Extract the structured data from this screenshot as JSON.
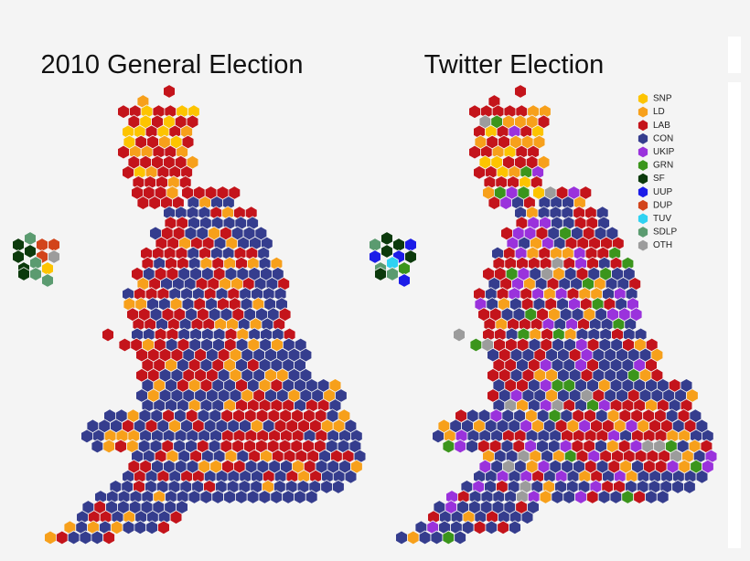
{
  "maps": [
    {
      "title": "2010 General Election"
    },
    {
      "title": "Twitter Election"
    }
  ],
  "legend": [
    {
      "label": "SNP",
      "color": "#fdc400"
    },
    {
      "label": "LD",
      "color": "#f7a01b"
    },
    {
      "label": "LAB",
      "color": "#c4141b"
    },
    {
      "label": "CON",
      "color": "#353d8e"
    },
    {
      "label": "UKIP",
      "color": "#9a32dc"
    },
    {
      "label": "GRN",
      "color": "#3b951c"
    },
    {
      "label": "SF",
      "color": "#0c3a0c"
    },
    {
      "label": "UUP",
      "color": "#1c1ce8"
    },
    {
      "label": "DUP",
      "color": "#d2441b"
    },
    {
      "label": "TUV",
      "color": "#2fd2f2"
    },
    {
      "label": "SDLP",
      "color": "#5b9b70"
    },
    {
      "label": "OTH",
      "color": "#9c9c9c"
    }
  ]
}
